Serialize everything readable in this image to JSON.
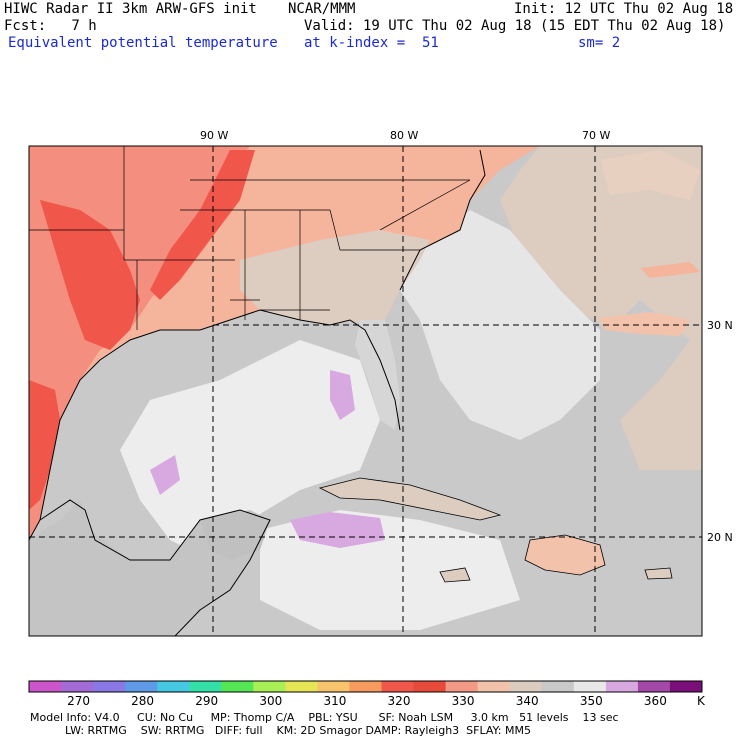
{
  "header": {
    "line1_left": "HIWC Radar II 3km ARW-GFS init",
    "line1_mid": "NCAR/MMM",
    "line1_right": "Init: 12 UTC Thu 02 Aug 18",
    "line2_left": "Fcst:   7 h",
    "line2_right": "Valid: 19 UTC Thu 02 Aug 18 (15 EDT Thu 02 Aug 18)",
    "line3_left": "Equivalent potential temperature",
    "line3_mid": "at k-index =  51",
    "line3_right": "sm= 2"
  },
  "map": {
    "lon_labels": [
      "90 W",
      "80 W",
      "70 W"
    ],
    "lat_labels": [
      "30 N",
      "20 N"
    ],
    "colors": {
      "land_hot": "#f0564a",
      "land_warm": "#f48e7e",
      "land_mild": "#f5b49c",
      "land_cool": "#ddccc0",
      "gray": "#c9c9c9",
      "light": "#ededed",
      "purple": "#d7a9e0",
      "grid": "#000000"
    }
  },
  "colorbar": {
    "unit": "K",
    "tick_labels": [
      "270",
      "280",
      "290",
      "300",
      "310",
      "320",
      "330",
      "340",
      "350",
      "360"
    ],
    "colors": [
      "#cc55cc",
      "#a36bd6",
      "#8a78e6",
      "#5f9ae8",
      "#44c8e4",
      "#33e0a8",
      "#55e655",
      "#a8ee55",
      "#e6e655",
      "#f7c36b",
      "#f79a5e",
      "#f0564a",
      "#e84a3a",
      "#f29a86",
      "#f2c3aa",
      "#dccbbf",
      "#c9c9c9",
      "#e8e8e8",
      "#d7a9e0",
      "#a347a8",
      "#7a0f7a"
    ]
  },
  "footer": {
    "line1": "Model Info: V4.0     CU: No Cu     MP: Thomp C/A    PBL: YSU      SF: Noah LSM     3.0 km   51 levels    13 sec",
    "line2": "          LW: RRTMG    SW: RRTMG   DIFF: full    KM: 2D Smagor DAMP: Rayleigh3  SFLAY: MM5"
  }
}
